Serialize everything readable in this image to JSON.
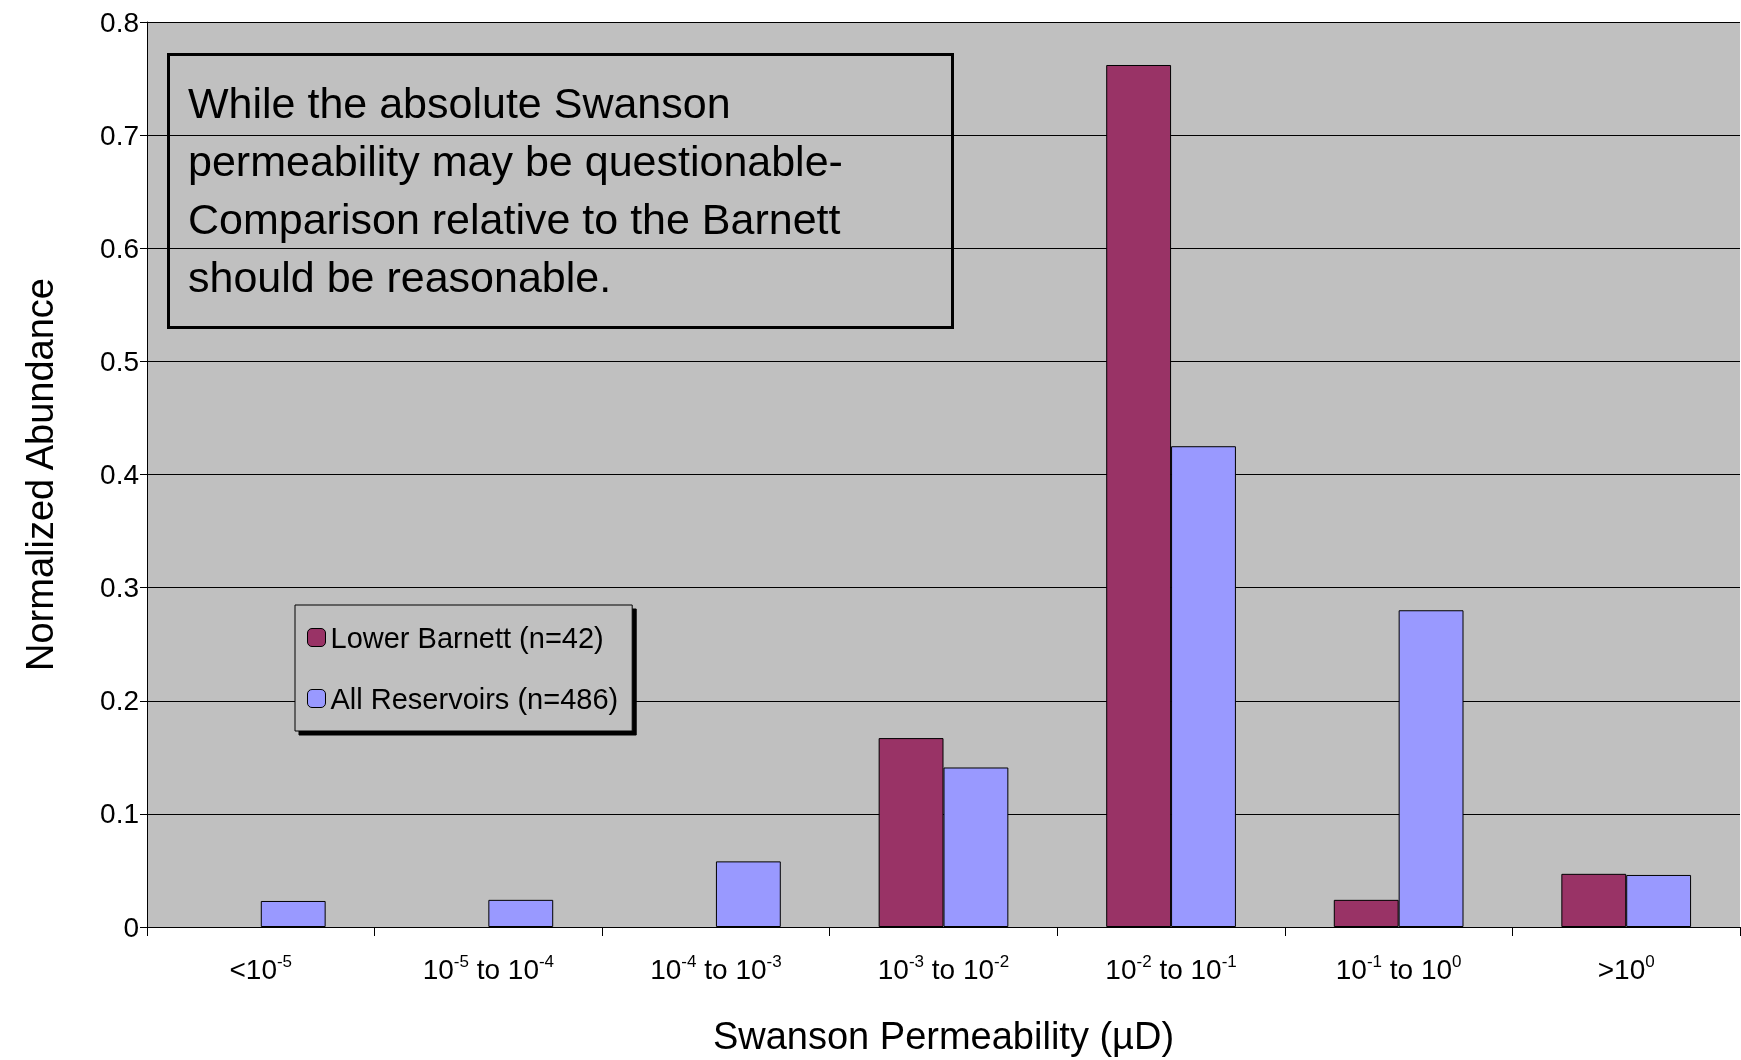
{
  "chart_data": {
    "type": "bar",
    "xlabel": "Swanson Permeability (µD)",
    "ylabel": "Normalized Abundance",
    "categories": [
      "<10$^{-5}$",
      "10$^{-5}$ to 10$^{-4}$",
      "10$^{-4}$ to 10$^{-3}$",
      "10$^{-3}$ to 10$^{-2}$",
      "10$^{-2}$ to 10$^{-1}$",
      "10$^{-1}$ to 10$^{0}$",
      ">10$^{0}$"
    ],
    "series": [
      {
        "name": "Lower Barnett (n=42)",
        "color": "#993366",
        "values": [
          null,
          null,
          null,
          0.167,
          0.762,
          0.024,
          0.047
        ]
      },
      {
        "name": "All Reservoirs (n=486)",
        "color": "#9999ff",
        "values": [
          0.023,
          0.024,
          0.058,
          0.141,
          0.425,
          0.28,
          0.046
        ]
      }
    ],
    "ylim": [
      0,
      0.8
    ],
    "yticks": [
      0,
      0.1,
      0.2,
      0.3,
      0.4,
      0.5,
      0.6,
      0.7,
      0.8
    ],
    "grid": "y",
    "legend": "left",
    "annotations": [
      "While the absolute Swanson permeability may be questionable- Comparison relative to the Barnett should be reasonable."
    ]
  }
}
